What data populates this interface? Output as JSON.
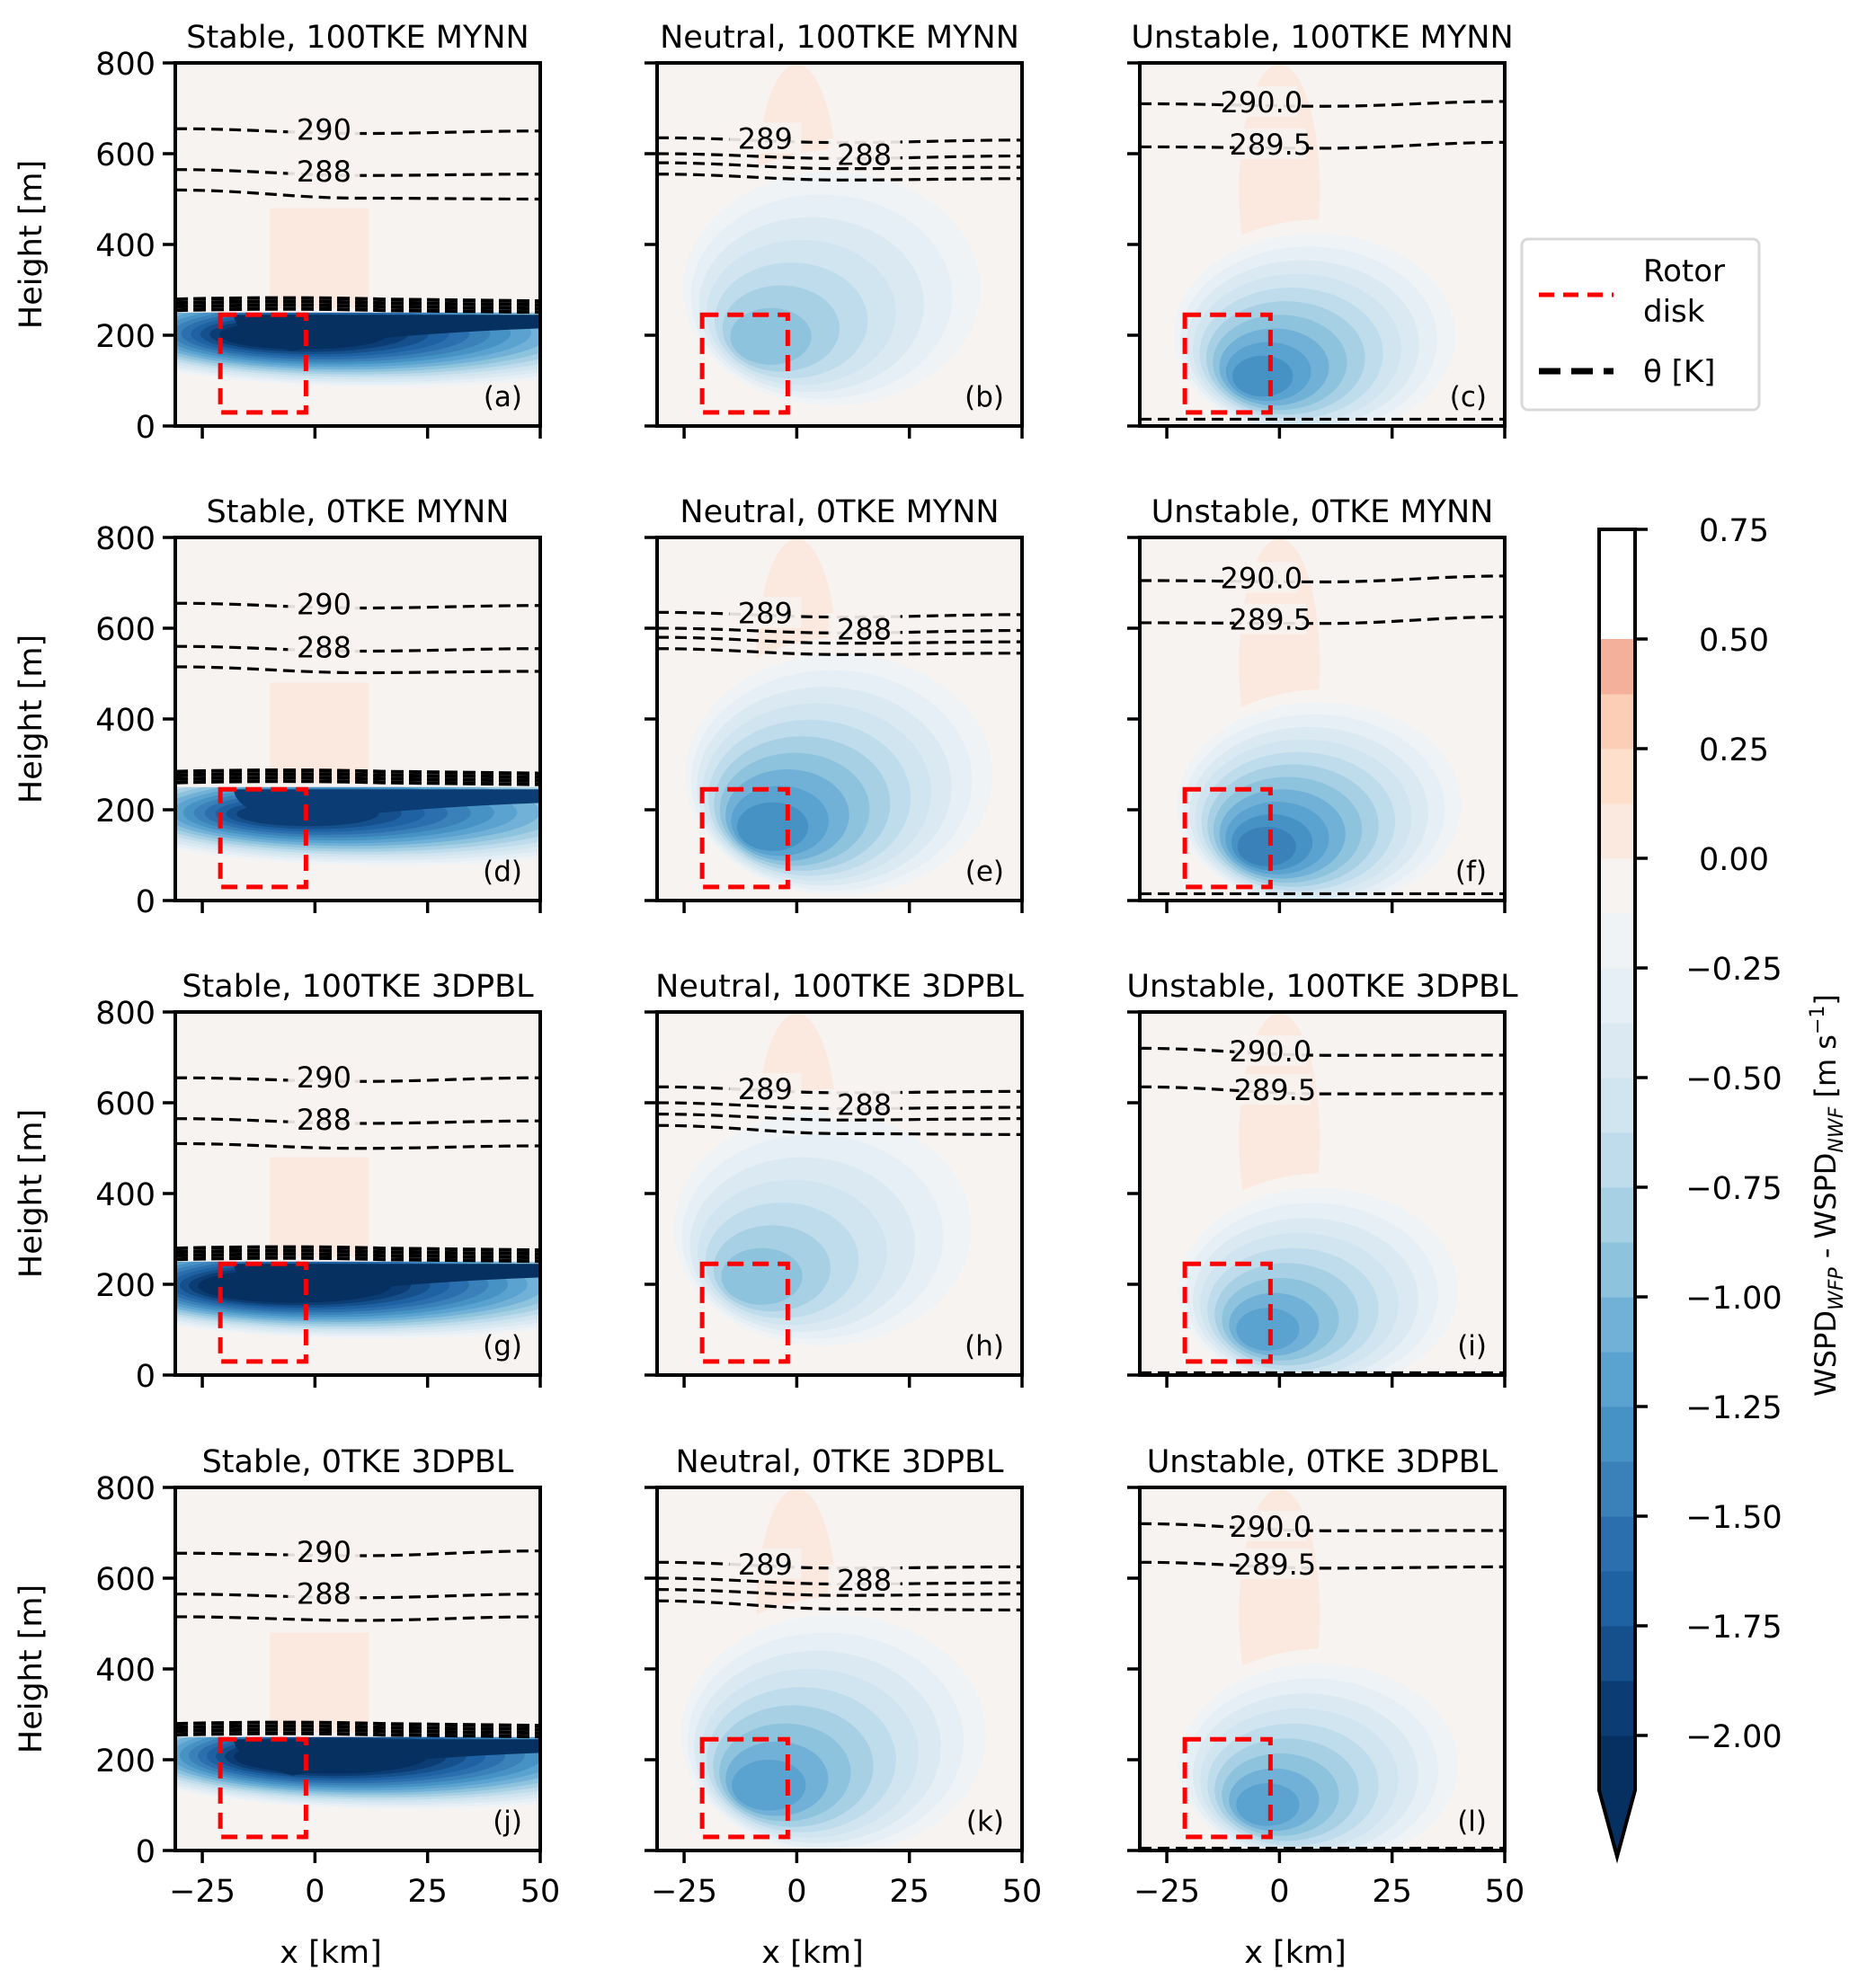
{
  "chart_data": {
    "type": "heatmap",
    "description": "Filled contour (WSPD difference) with potential-temperature contour lines and rotor-disk outline, 4x3 panel grid",
    "xlabel": "x [km]",
    "ylabel": "Height [m]",
    "xlim": [
      -31,
      50
    ],
    "ylim": [
      0,
      800
    ],
    "xticks": [
      -25,
      0,
      25,
      50
    ],
    "xtick_labels": [
      "−25",
      "0",
      "25",
      "50"
    ],
    "yticks": [
      0,
      200,
      400,
      600,
      800
    ],
    "ytick_labels": [
      "0",
      "200",
      "400",
      "600",
      "800"
    ],
    "rotor_disk": {
      "x": [
        -21,
        -2
      ],
      "z": [
        30,
        245
      ],
      "color": "#ff0000"
    },
    "legend": {
      "placement": "right of top row",
      "entries": [
        {
          "label_lines": [
            "Rotor",
            "disk"
          ],
          "style": "dashed",
          "color": "#ff0000"
        },
        {
          "label": "θ [K]",
          "style": "dashed-thick",
          "color": "#000000"
        }
      ]
    },
    "colorbar": {
      "label_main": "WSPD",
      "label_sub1": "WFP",
      "label_mid": " - WSPD",
      "label_sub2": "NWF",
      "label_units": " [m s",
      "label_exp": "−1",
      "label_end": "]",
      "vmin": -2.125,
      "vmax": 0.75,
      "level_step": 0.125,
      "extend": "min",
      "ticks": [
        0.75,
        0.5,
        0.25,
        0.0,
        -0.25,
        -0.5,
        -0.75,
        -1.0,
        -1.25,
        -1.5,
        -1.75,
        -2.0
      ],
      "tick_labels": [
        "0.75",
        "0.50",
        "0.25",
        "0.00",
        "−0.25",
        "−0.50",
        "−0.75",
        "−1.00",
        "−1.25",
        "−1.50",
        "−1.75",
        "−2.00"
      ],
      "colors": [
        "#053061",
        "#0b3d74",
        "#154f8c",
        "#1f62a4",
        "#2b6fae",
        "#3a80b9",
        "#4692c5",
        "#5aa2cf",
        "#72b1d7",
        "#8ec3de",
        "#a8d0e4",
        "#bfdcec",
        "#d1e5f0",
        "#dbe9f2",
        "#e6eff5",
        "#eff3f5",
        "#f7f3f1",
        "#fbe9df",
        "#fddfcc",
        "#fcceb5",
        "#f4b09a"
      ],
      "extend_color": "#05305f"
    },
    "panels": [
      {
        "id": "a",
        "title": "Stable, 100TKE MYNN",
        "label": "(a)",
        "stability": "stable",
        "min_deficit": -2.2,
        "wake_core": {
          "x": -5,
          "z": 210
        },
        "theta_contours": [
          {
            "value": 290,
            "label": "290",
            "z_left": 655,
            "z_right": 650,
            "label_x": 2
          },
          {
            "value": 288,
            "label": "288",
            "z_left": 565,
            "z_right": 555,
            "label_x": 2
          },
          {
            "value": 287,
            "label": "",
            "z_left": 520,
            "z_right": 500
          }
        ],
        "theta_cap_z": [
          255,
          285
        ]
      },
      {
        "id": "b",
        "title": "Neutral, 100TKE MYNN",
        "label": "(b)",
        "stability": "neutral",
        "min_deficit": -1.0,
        "wake_core": {
          "x": -8,
          "z": 180
        },
        "theta_contours": [
          {
            "value": 289,
            "label": "289",
            "z_left": 635,
            "z_right": 630,
            "label_x": -7
          },
          {
            "value": 288.5,
            "label": "288",
            "z_left": 600,
            "z_right": 595,
            "label_x": 15
          },
          {
            "value": 288,
            "label": "",
            "z_left": 580,
            "z_right": 570
          },
          {
            "value": 287.5,
            "label": "",
            "z_left": 555,
            "z_right": 545
          }
        ]
      },
      {
        "id": "c",
        "title": "Unstable, 100TKE MYNN",
        "label": "(c)",
        "stability": "unstable",
        "min_deficit": -1.35,
        "wake_core": {
          "x": -5,
          "z": 100
        },
        "theta_contours": [
          {
            "value": 290.0,
            "label": "290.0",
            "z_left": 710,
            "z_right": 715,
            "label_x": -4
          },
          {
            "value": 289.5,
            "label": "289.5",
            "z_left": 615,
            "z_right": 625,
            "label_x": -2
          }
        ],
        "theta_surface_z": 15
      },
      {
        "id": "d",
        "title": "Stable, 0TKE MYNN",
        "label": "(d)",
        "stability": "stable",
        "min_deficit": -1.9,
        "wake_core": {
          "x": -3,
          "z": 200
        },
        "theta_contours": [
          {
            "value": 290,
            "label": "290",
            "z_left": 655,
            "z_right": 650,
            "label_x": 2
          },
          {
            "value": 288,
            "label": "288",
            "z_left": 560,
            "z_right": 555,
            "label_x": 2
          },
          {
            "value": 287,
            "label": "",
            "z_left": 515,
            "z_right": 505
          }
        ],
        "theta_cap_z": [
          260,
          285
        ]
      },
      {
        "id": "e",
        "title": "Neutral, 0TKE MYNN",
        "label": "(e)",
        "stability": "neutral",
        "min_deficit": -1.35,
        "wake_core": {
          "x": -7,
          "z": 150
        },
        "theta_contours": [
          {
            "value": 289,
            "label": "289",
            "z_left": 635,
            "z_right": 630,
            "label_x": -7
          },
          {
            "value": 288.5,
            "label": "288",
            "z_left": 600,
            "z_right": 595,
            "label_x": 15
          },
          {
            "value": 288,
            "label": "",
            "z_left": 580,
            "z_right": 570
          },
          {
            "value": 287.5,
            "label": "",
            "z_left": 555,
            "z_right": 545
          }
        ]
      },
      {
        "id": "f",
        "title": "Unstable, 0TKE MYNN",
        "label": "(f)",
        "stability": "unstable",
        "min_deficit": -1.45,
        "wake_core": {
          "x": -4,
          "z": 110
        },
        "theta_contours": [
          {
            "value": 290.0,
            "label": "290.0",
            "z_left": 705,
            "z_right": 715,
            "label_x": -4
          },
          {
            "value": 289.5,
            "label": "289.5",
            "z_left": 612,
            "z_right": 625,
            "label_x": -2
          }
        ],
        "theta_surface_z": 15
      },
      {
        "id": "g",
        "title": "Stable, 100TKE 3DPBL",
        "label": "(g)",
        "stability": "stable",
        "min_deficit": -2.3,
        "wake_core": {
          "x": -8,
          "z": 205
        },
        "theta_contours": [
          {
            "value": 290,
            "label": "290",
            "z_left": 655,
            "z_right": 655,
            "label_x": 2
          },
          {
            "value": 288,
            "label": "288",
            "z_left": 565,
            "z_right": 560,
            "label_x": 2
          },
          {
            "value": 287,
            "label": "",
            "z_left": 510,
            "z_right": 505
          }
        ],
        "theta_cap_z": [
          255,
          280
        ]
      },
      {
        "id": "h",
        "title": "Neutral, 100TKE 3DPBL",
        "label": "(h)",
        "stability": "neutral",
        "min_deficit": -0.95,
        "wake_core": {
          "x": -10,
          "z": 200
        },
        "theta_contours": [
          {
            "value": 289,
            "label": "289",
            "z_left": 635,
            "z_right": 625,
            "label_x": -7
          },
          {
            "value": 288.5,
            "label": "288",
            "z_left": 600,
            "z_right": 590,
            "label_x": 15
          },
          {
            "value": 288,
            "label": "",
            "z_left": 575,
            "z_right": 565
          },
          {
            "value": 287.5,
            "label": "",
            "z_left": 550,
            "z_right": 530
          }
        ]
      },
      {
        "id": "i",
        "title": "Unstable, 100TKE 3DPBL",
        "label": "(i)",
        "stability": "unstable",
        "min_deficit": -1.2,
        "wake_core": {
          "x": -4,
          "z": 90
        },
        "theta_contours": [
          {
            "value": 290.0,
            "label": "290.0",
            "z_left": 720,
            "z_right": 705,
            "label_x": -2
          },
          {
            "value": 289.5,
            "label": "289.5",
            "z_left": 635,
            "z_right": 620,
            "label_x": -1
          }
        ],
        "theta_surface_z": 5
      },
      {
        "id": "j",
        "title": "Stable, 0TKE 3DPBL",
        "label": "(j)",
        "stability": "stable",
        "min_deficit": -2.3,
        "wake_core": {
          "x": 0,
          "z": 215
        },
        "theta_contours": [
          {
            "value": 290,
            "label": "290",
            "z_left": 655,
            "z_right": 660,
            "label_x": 2
          },
          {
            "value": 288,
            "label": "288",
            "z_left": 565,
            "z_right": 565,
            "label_x": 2
          },
          {
            "value": 287,
            "label": "",
            "z_left": 515,
            "z_right": 515
          }
        ],
        "theta_cap_z": [
          255,
          280
        ]
      },
      {
        "id": "k",
        "title": "Neutral, 0TKE 3DPBL",
        "label": "(k)",
        "stability": "neutral",
        "min_deficit": -1.2,
        "wake_core": {
          "x": -8,
          "z": 130
        },
        "theta_contours": [
          {
            "value": 289,
            "label": "289",
            "z_left": 635,
            "z_right": 625,
            "label_x": -7
          },
          {
            "value": 288.5,
            "label": "288",
            "z_left": 600,
            "z_right": 590,
            "label_x": 15
          },
          {
            "value": 288,
            "label": "",
            "z_left": 575,
            "z_right": 565
          },
          {
            "value": 287.5,
            "label": "",
            "z_left": 550,
            "z_right": 530
          }
        ]
      },
      {
        "id": "l",
        "title": "Unstable, 0TKE 3DPBL",
        "label": "(l)",
        "stability": "unstable",
        "min_deficit": -1.25,
        "wake_core": {
          "x": -4,
          "z": 90
        },
        "theta_contours": [
          {
            "value": 290.0,
            "label": "290.0",
            "z_left": 720,
            "z_right": 705,
            "label_x": -2
          },
          {
            "value": 289.5,
            "label": "289.5",
            "z_left": 635,
            "z_right": 625,
            "label_x": -1
          }
        ],
        "theta_surface_z": 5
      }
    ]
  }
}
